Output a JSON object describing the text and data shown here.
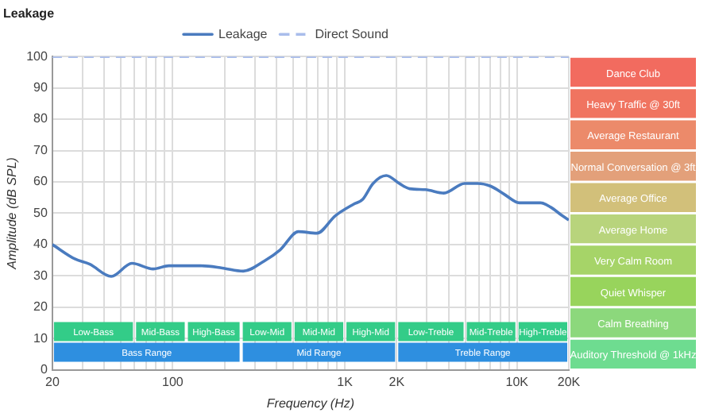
{
  "chart_data": {
    "type": "line",
    "title": "Leakage",
    "xlabel": "Frequency (Hz)",
    "ylabel": "Amplitude (dB SPL)",
    "log": "x",
    "grid": true,
    "legend": "top",
    "marker": "none",
    "xlim": [
      20,
      20000
    ],
    "ylim": [
      0,
      100
    ],
    "xticks": [
      20,
      {
        "value": 30,
        "label": null
      },
      {
        "value": 40,
        "label": null
      },
      {
        "value": 50,
        "label": null
      },
      {
        "value": 60,
        "label": null
      },
      {
        "value": 70,
        "label": null
      },
      {
        "value": 80,
        "label": null
      },
      {
        "value": 90,
        "label": null
      },
      100,
      {
        "value": 200,
        "label": null
      },
      {
        "value": 300,
        "label": null
      },
      {
        "value": 400,
        "label": null
      },
      {
        "value": 500,
        "label": null
      },
      {
        "value": 600,
        "label": null
      },
      {
        "value": 700,
        "label": null
      },
      {
        "value": 800,
        "label": null
      },
      {
        "value": 900,
        "label": null
      },
      {
        "value": 1000,
        "label": "1K"
      },
      {
        "value": 2000,
        "label": "2K"
      },
      {
        "value": 3000,
        "label": null
      },
      {
        "value": 4000,
        "label": null
      },
      {
        "value": 5000,
        "label": null
      },
      {
        "value": 6000,
        "label": null
      },
      {
        "value": 7000,
        "label": null
      },
      {
        "value": 8000,
        "label": null
      },
      {
        "value": 9000,
        "label": null
      },
      {
        "value": 10000,
        "label": "10K"
      },
      {
        "value": 20000,
        "label": "20K"
      }
    ],
    "yticks": [
      0,
      10,
      20,
      30,
      40,
      50,
      60,
      70,
      80,
      90,
      100
    ],
    "series": [
      {
        "name": "Leakage",
        "color": "#4a7bbf",
        "line_style": "solid",
        "x": [
          20,
          27,
          33,
          44,
          58,
          77,
          95,
          146,
          194,
          257,
          340,
          421,
          537,
          688,
          881,
          1127,
          1270,
          1459,
          1740,
          2070,
          2380,
          2940,
          3760,
          4970,
          5900,
          7050,
          8400,
          10350,
          13700,
          15700,
          18100,
          20000
        ],
        "values": [
          40,
          35.4,
          33.7,
          29.8,
          34,
          32.2,
          33.2,
          33.2,
          32.5,
          31.5,
          34.7,
          38.3,
          44.1,
          43.6,
          49.2,
          52.9,
          54.4,
          59.5,
          62,
          59.5,
          57.8,
          57.5,
          56.4,
          59.5,
          59.5,
          58.6,
          56.1,
          53.3,
          53.3,
          51.9,
          49.4,
          47.8
        ]
      },
      {
        "name": "Direct Sound",
        "color": "#a9bdeb",
        "line_style": "dashed",
        "x": [
          20,
          20000
        ],
        "values": [
          100,
          100
        ]
      }
    ],
    "bands": [
      {
        "axis": "x",
        "from": 20,
        "to": 60,
        "label": "Low-Bass",
        "color": "#33cc88"
      },
      {
        "axis": "x",
        "from": 60,
        "to": 120,
        "label": "Mid-Bass",
        "color": "#33cc88"
      },
      {
        "axis": "x",
        "from": 120,
        "to": 250,
        "label": "High-Bass",
        "color": "#33cc88"
      },
      {
        "axis": "x",
        "from": 250,
        "to": 500,
        "label": "Low-Mid",
        "color": "#33cc88"
      },
      {
        "axis": "x",
        "from": 500,
        "to": 1000,
        "label": "Mid-Mid",
        "color": "#33cc88"
      },
      {
        "axis": "x",
        "from": 1000,
        "to": 2000,
        "label": "High-Mid",
        "color": "#33cc88"
      },
      {
        "axis": "x",
        "from": 2000,
        "to": 5000,
        "label": "Low-Treble",
        "color": "#33cc88"
      },
      {
        "axis": "x",
        "from": 5000,
        "to": 10000,
        "label": "Mid-Treble",
        "color": "#33cc88"
      },
      {
        "axis": "x",
        "from": 10000,
        "to": 20000,
        "label": "High-Treble",
        "color": "#33cc88"
      },
      {
        "axis": "x",
        "from": 20,
        "to": 250,
        "label": "Bass Range",
        "color": "#2e8fe0"
      },
      {
        "axis": "x",
        "from": 250,
        "to": 2000,
        "label": "Mid Range",
        "color": "#2e8fe0"
      },
      {
        "axis": "x",
        "from": 2000,
        "to": 20000,
        "label": "Treble Range",
        "color": "#2e8fe0"
      }
    ],
    "annotations": [
      "Dance Club",
      "Heavy Traffic @ 30ft",
      "Average Restaurant",
      "Normal Conversation @ 3ft",
      "Average Office",
      "Average Home",
      "Very Calm Room",
      "Quiet Whisper",
      "Calm Breathing",
      "Auditory Threshold @ 1kHz"
    ]
  }
}
